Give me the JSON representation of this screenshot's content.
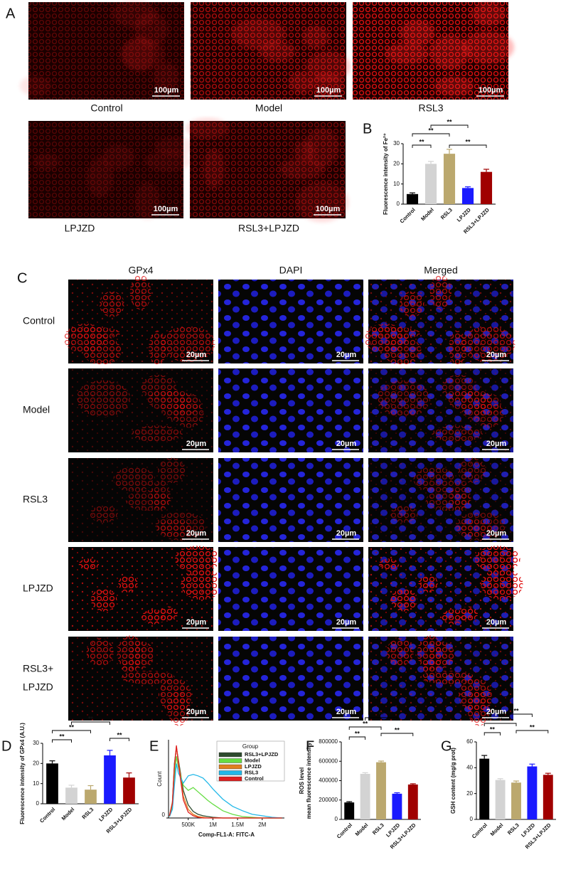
{
  "panel_labels": [
    "A",
    "B",
    "C",
    "D",
    "E",
    "F",
    "G"
  ],
  "panel_a": {
    "captions": [
      "Control",
      "Model",
      "RSL3",
      "LPJZD",
      "RSL3+LPJZD"
    ],
    "scale_bar": "100µm"
  },
  "panel_c": {
    "columns": [
      "GPx4",
      "DAPI",
      "Merged"
    ],
    "rows": [
      [
        "Control"
      ],
      [
        "Model"
      ],
      [
        "RSL3"
      ],
      [
        "LPJZD"
      ],
      [
        "RSL3+",
        "LPJZD"
      ]
    ],
    "scale_bar": "20µm"
  },
  "chart_data": [
    {
      "type": "bar",
      "ylabel": "Fluorescence intensity of Fe²⁺",
      "categories": [
        "Control",
        "Model",
        "RSL3",
        "LPJZD",
        "RSL3+LPJZD"
      ],
      "values": [
        5,
        20,
        25,
        8,
        16
      ],
      "errors": [
        0.6,
        1.2,
        2.2,
        0.6,
        1.3
      ],
      "colors": [
        "#000000",
        "#d3d3d3",
        "#bba86e",
        "#1a1aff",
        "#a00000"
      ],
      "ylim": [
        0,
        30
      ],
      "yticks": [
        0,
        10,
        20,
        30
      ],
      "brackets": [
        {
          "from": "Control",
          "to": "Model",
          "label": "**"
        },
        {
          "from": "Control",
          "to": "RSL3",
          "label": "**"
        },
        {
          "from": "Model",
          "to": "LPJZD",
          "label": "**"
        },
        {
          "from": "RSL3",
          "to": "RSL3+LPJZD",
          "label": "**"
        }
      ]
    },
    {
      "type": "bar",
      "ylabel": "Fluorescence intensity of GPx4 (A.U.)",
      "categories": [
        "Control",
        "Model",
        "RSL3",
        "LPJZD",
        "RSL3+LPJZD"
      ],
      "values": [
        20,
        8,
        7,
        24,
        13
      ],
      "errors": [
        1.3,
        1.2,
        2,
        2.5,
        2.3
      ],
      "colors": [
        "#000000",
        "#d3d3d3",
        "#bba86e",
        "#1a1aff",
        "#a00000"
      ],
      "ylim": [
        0,
        30
      ],
      "yticks": [
        0,
        10,
        20,
        30
      ],
      "brackets": [
        {
          "from": "Control",
          "to": "Model",
          "label": "**"
        },
        {
          "from": "Control",
          "to": "RSL3",
          "label": "**"
        },
        {
          "from": "Model",
          "to": "LPJZD",
          "label": "**"
        },
        {
          "from": "LPJZD",
          "to": "RSL3+LPJZD",
          "label": "**"
        }
      ]
    },
    {
      "type": "line",
      "legend_title": "Group",
      "xlabel": "Comp-FL1-A: FITC-A",
      "ylabel": "Count",
      "x": [
        120000,
        180000,
        220000,
        260000,
        300000,
        400000,
        500000,
        600000,
        700000,
        800000,
        900000,
        1000000,
        1200000,
        1400000,
        1600000,
        1800000,
        2000000,
        2200000,
        2400000
      ],
      "series": [
        {
          "name": "RSL3+LPJZD",
          "color": "#2d4a2d",
          "values": [
            3,
            22,
            75,
            97,
            80,
            38,
            18,
            9,
            5,
            3,
            2,
            1,
            0,
            0,
            0,
            0,
            0,
            0,
            0
          ]
        },
        {
          "name": "Model",
          "color": "#66dd44",
          "values": [
            2,
            15,
            55,
            85,
            70,
            45,
            38,
            42,
            36,
            30,
            24,
            19,
            10,
            5,
            2,
            1,
            0,
            0,
            0
          ]
        },
        {
          "name": "LPJZD",
          "color": "#e08020",
          "values": [
            3,
            22,
            72,
            98,
            78,
            30,
            12,
            5,
            2,
            1,
            0,
            0,
            0,
            0,
            0,
            0,
            0,
            0,
            0
          ]
        },
        {
          "name": "RSL3",
          "color": "#22b8e8",
          "values": [
            2,
            12,
            45,
            75,
            62,
            48,
            58,
            60,
            58,
            55,
            48,
            40,
            26,
            16,
            10,
            5,
            3,
            1,
            0
          ]
        },
        {
          "name": "Control",
          "color": "#e02020",
          "values": [
            3,
            20,
            70,
            100,
            75,
            25,
            8,
            3,
            1,
            0,
            0,
            0,
            0,
            0,
            0,
            0,
            0,
            0,
            0
          ]
        }
      ],
      "xlim": [
        100000,
        2450000
      ],
      "xticks": [
        {
          "value": 500000,
          "label": "500K"
        },
        {
          "value": 1000000,
          "label": "1M"
        },
        {
          "value": 1500000,
          "label": "1.5M"
        },
        {
          "value": 2000000,
          "label": "2M"
        }
      ],
      "ylim": [
        0,
        100
      ],
      "yticks": [
        0
      ]
    },
    {
      "type": "bar",
      "ylabel": [
        "ROS level",
        "mean fluorescence intensity"
      ],
      "categories": [
        "Control",
        "Model",
        "RSL3",
        "LPJZD",
        "RSL3+LPJZD"
      ],
      "values": [
        175000,
        470000,
        590000,
        265000,
        360000
      ],
      "errors": [
        8000,
        12000,
        12000,
        10000,
        8000
      ],
      "colors": [
        "#000000",
        "#d3d3d3",
        "#bba86e",
        "#1a1aff",
        "#a00000"
      ],
      "ylim": [
        0,
        800000
      ],
      "yticks": [
        0,
        200000,
        400000,
        600000,
        800000
      ],
      "brackets": [
        {
          "from": "Control",
          "to": "Model",
          "label": "**"
        },
        {
          "from": "Control",
          "to": "RSL3",
          "label": "**"
        },
        {
          "from": "Model",
          "to": "LPJZD",
          "label": "**"
        },
        {
          "from": "RSL3",
          "to": "RSL3+LPJZD",
          "label": "**"
        }
      ]
    },
    {
      "type": "bar",
      "ylabel": "GSH content (mg/g prot)",
      "categories": [
        "Control",
        "Model",
        "RSL3",
        "LPJZD",
        "RSL3+LPJZD"
      ],
      "values": [
        47,
        30.5,
        28.5,
        41,
        34.5
      ],
      "errors": [
        2.5,
        1,
        1.2,
        1.8,
        1.2
      ],
      "colors": [
        "#000000",
        "#d3d3d3",
        "#bba86e",
        "#1a1aff",
        "#a00000"
      ],
      "ylim": [
        0,
        60
      ],
      "yticks": [
        0,
        20,
        40,
        60
      ],
      "brackets": [
        {
          "from": "Control",
          "to": "Model",
          "label": "**"
        },
        {
          "from": "Control",
          "to": "RSL3",
          "label": "**"
        },
        {
          "from": "Model",
          "to": "LPJZD",
          "label": "**"
        },
        {
          "from": "RSL3",
          "to": "RSL3+LPJZD",
          "label": "**"
        }
      ]
    }
  ]
}
